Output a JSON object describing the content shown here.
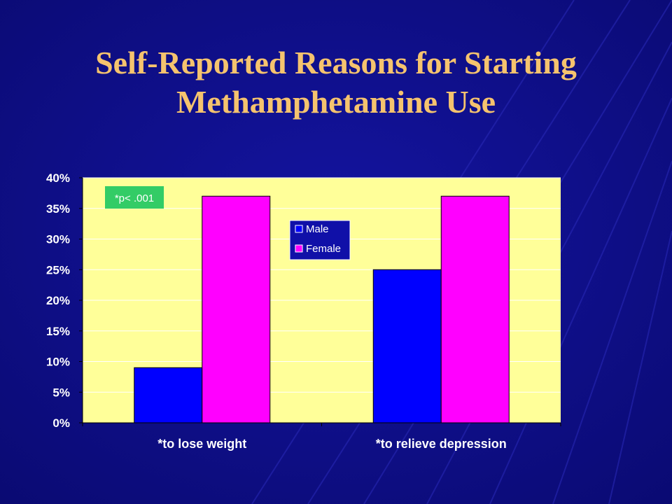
{
  "slide": {
    "title_line1": "Self-Reported Reasons for Starting",
    "title_line2": "Methamphetamine Use"
  },
  "chart_data": {
    "type": "bar",
    "categories": [
      "*to lose weight",
      "*to relieve depression"
    ],
    "series": [
      {
        "name": "Male",
        "values": [
          9,
          25
        ],
        "color": "#0000ff"
      },
      {
        "name": "Female",
        "values": [
          37,
          37
        ],
        "color": "#ff00ff"
      }
    ],
    "ylim": [
      0,
      40
    ],
    "yticks": [
      0,
      5,
      10,
      15,
      20,
      25,
      30,
      35,
      40
    ],
    "ytick_labels": [
      "0%",
      "5%",
      "10%",
      "15%",
      "20%",
      "25%",
      "30%",
      "35%",
      "40%"
    ],
    "grid": true,
    "legend_position": "top-center",
    "annotation": "*p< .001",
    "plot_background": "#ffff99",
    "annotation_background": "#33cc66"
  },
  "colors": {
    "background": "#10108a",
    "title": "#f5c36e",
    "axis_text": "#ffffff"
  }
}
